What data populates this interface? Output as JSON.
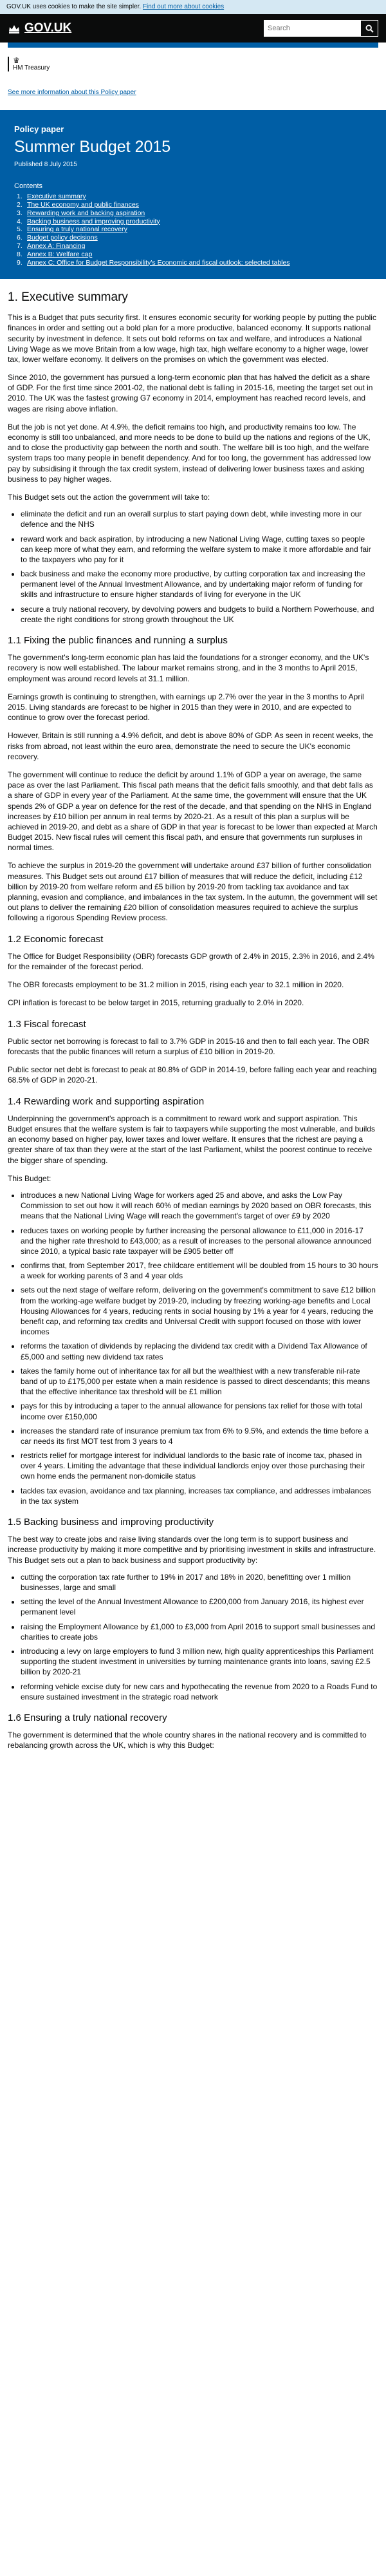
{
  "cookie": {
    "text": "GOV.UK uses cookies to make the site simpler.",
    "link": "Find out more about cookies"
  },
  "header": {
    "brand": "GOV.UK",
    "search_placeholder": "Search",
    "search_icon": "magnifying-glass-icon",
    "crown_icon": "crown-icon"
  },
  "org": {
    "name": "HM Treasury",
    "logo_icon": "royal-crest-icon"
  },
  "policy_link": "See more information about this Policy paper",
  "hero": {
    "type": "Policy paper",
    "title": "Summer Budget 2015",
    "published": "Published 8 July 2015",
    "contents_label": "Contents",
    "contents": [
      {
        "num": "1.",
        "label": "Executive summary"
      },
      {
        "num": "2.",
        "label": "The UK economy and public finances"
      },
      {
        "num": "3.",
        "label": "Rewarding work and backing aspiration"
      },
      {
        "num": "4.",
        "label": "Backing business and improving productivity"
      },
      {
        "num": "5.",
        "label": "Ensuring a truly national recovery"
      },
      {
        "num": "6.",
        "label": "Budget policy decisions"
      },
      {
        "num": "7.",
        "label": "Annex A: Financing"
      },
      {
        "num": "8.",
        "label": "Annex B: Welfare cap"
      },
      {
        "num": "9.",
        "label": "Annex C: Office for Budget Responsibility's Economic and fiscal outlook: selected tables"
      }
    ]
  },
  "content": {
    "h_exec": "1. Executive summary",
    "p_exec1": "This is a Budget that puts security first. It ensures economic security for working people by putting the public finances in order and setting out a bold plan for a more productive, balanced economy. It supports national security by investment in defence. It sets out bold reforms on tax and welfare, and introduces a National Living Wage as we move Britain from a low wage, high tax, high welfare economy to a higher wage, lower tax, lower welfare economy. It delivers on the promises on which the government was elected.",
    "p_exec2": "Since 2010, the government has pursued a long-term economic plan that has halved the deficit as a share of GDP. For the first time since 2001-02, the national debt is falling in 2015-16, meeting the target set out in 2010. The UK was the fastest growing G7 economy in 2014, employment has reached record levels, and wages are rising above inflation.",
    "p_exec3": "But the job is not yet done. At 4.9%, the deficit remains too high, and productivity remains too low. The economy is still too unbalanced, and more needs to be done to build up the nations and regions of the UK, and to close the productivity gap between the north and south. The welfare bill is too high, and the welfare system traps too many people in benefit dependency. And for too long, the government has addressed low pay by subsidising it through the tax credit system, instead of delivering lower business taxes and asking business to pay higher wages.",
    "p_exec4": "This Budget sets out the action the government will take to:",
    "exec_bullets": [
      "eliminate the deficit and run an overall surplus to start paying down debt, while investing more in our defence and the NHS",
      "reward work and back aspiration, by introducing a new National Living Wage, cutting taxes so people can keep more of what they earn, and reforming the welfare system to make it more affordable and fair to the taxpayers who pay for it",
      "back business and make the economy more productive, by cutting corporation tax and increasing the permanent level of the Annual Investment Allowance, and by undertaking major reform of funding for skills and infrastructure to ensure higher standards of living for everyone in the UK",
      "secure a truly national recovery, by devolving powers and budgets to build a Northern Powerhouse, and create the right conditions for strong growth throughout the UK"
    ],
    "h_fix": "1.1 Fixing the public finances and running a surplus",
    "p_fix1": "The government's long-term economic plan has laid the foundations for a stronger economy, and the UK's recovery is now well established. The labour market remains strong, and in the 3 months to April 2015, employment was around record levels at 31.1 million.",
    "p_fix2": "Earnings growth is continuing to strengthen, with earnings up 2.7% over the year in the 3 months to April 2015. Living standards are forecast to be higher in 2015 than they were in 2010, and are expected to continue to grow over the forecast period.",
    "p_fix3": "However, Britain is still running a 4.9% deficit, and debt is above 80% of GDP. As seen in recent weeks, the risks from abroad, not least within the euro area, demonstrate the need to secure the UK's economic recovery.",
    "p_fix4": "The government will continue to reduce the deficit by around 1.1% of GDP a year on average, the same pace as over the last Parliament. This fiscal path means that the deficit falls smoothly, and that debt falls as a share of GDP in every year of the Parliament. At the same time, the government will ensure that the UK spends 2% of GDP a year on defence for the rest of the decade, and that spending on the NHS in England increases by £10 billion per annum in real terms by 2020-21. As a result of this plan a surplus will be achieved in 2019-20, and debt as a share of GDP in that year is forecast to be lower than expected at March Budget 2015. New fiscal rules will cement this fiscal path, and ensure that governments run surpluses in normal times.",
    "p_fix5": "To achieve the surplus in 2019-20 the government will undertake around £37 billion of further consolidation measures. This Budget sets out around £17 billion of measures that will reduce the deficit, including £12 billion by 2019-20 from welfare reform and £5 billion by 2019-20 from tackling tax avoidance and tax planning, evasion and compliance, and imbalances in the tax system. In the autumn, the government will set out plans to deliver the remaining £20 billion of consolidation measures required to achieve the surplus following a rigorous Spending Review process.",
    "h_econ": "1.2 Economic forecast",
    "p_econ1": "The Office for Budget Responsibility (OBR) forecasts GDP growth of 2.4% in 2015, 2.3% in 2016, and 2.4% for the remainder of the forecast period.",
    "p_econ2": "The OBR forecasts employment to be 31.2 million in 2015, rising each year to 32.1 million in 2020.",
    "p_econ3": "CPI inflation is forecast to be below target in 2015, returning gradually to 2.0% in 2020.",
    "h_fiscal": "1.3 Fiscal forecast",
    "p_fiscal1": "Public sector net borrowing is forecast to fall to 3.7% GDP in 2015-16 and then to fall each year. The OBR forecasts that the public finances will return a surplus of £10 billion in 2019-20.",
    "p_fiscal2": "Public sector net debt is forecast to peak at 80.8% of GDP in 2014-19, before falling each year and reaching 68.5% of GDP in 2020-21.",
    "h_reward": "1.4 Rewarding work and supporting aspiration",
    "p_reward1": "Underpinning the government's approach is a commitment to reward work and support aspiration. This Budget ensures that the welfare system is fair to taxpayers while supporting the most vulnerable, and builds an economy based on higher pay, lower taxes and lower welfare. It ensures that the richest are paying a greater share of tax than they were at the start of the last Parliament, whilst the poorest continue to receive the bigger share of spending.",
    "p_reward2": "This Budget:",
    "reward_bullets": [
      "introduces a new National Living Wage for workers aged 25 and above, and asks the Low Pay Commission to set out how it will reach 60% of median earnings by 2020 based on OBR forecasts, this means that the National Living Wage will reach the government's target of over £9 by 2020",
      "reduces taxes on working people by further increasing the personal allowance to £11,000 in 2016-17 and the higher rate threshold to £43,000; as a result of increases to the personal allowance announced since 2010, a typical basic rate taxpayer will be £905 better off",
      "confirms that, from September 2017, free childcare entitlement will be doubled from 15 hours to 30 hours a week for working parents of 3 and 4 year olds",
      "sets out the next stage of welfare reform, delivering on the government's commitment to save £12 billion from the working-age welfare budget by 2019-20, including by freezing working-age benefits and Local Housing Allowances for 4 years, reducing rents in social housing by 1% a year for 4 years, reducing the benefit cap, and reforming tax credits and Universal Credit with support focused on those with lower incomes",
      "reforms the taxation of dividends by replacing the dividend tax credit with a Dividend Tax Allowance of £5,000 and setting new dividend tax rates",
      "takes the family home out of inheritance tax for all but the wealthiest with a new transferable nil-rate band of up to £175,000 per estate when a main residence is passed to direct descendants; this means that the effective inheritance tax threshold will be £1 million",
      "pays for this by introducing a taper to the annual allowance for pensions tax relief for those with total income over £150,000",
      "increases the standard rate of insurance premium tax from 6% to 9.5%, and extends the time before a car needs its first MOT test from 3 years to 4",
      "restricts relief for mortgage interest for individual landlords to the basic rate of income tax, phased in over 4 years. Limiting the advantage that these individual landlords enjoy over those purchasing their own home ends the permanent non-domicile status",
      "tackles tax evasion, avoidance and tax planning, increases tax compliance, and addresses imbalances in the tax system"
    ],
    "h_business": "1.5 Backing business and improving productivity",
    "p_business1": "The best way to create jobs and raise living standards over the long term is to support business and increase productivity by making it more competitive and by prioritising investment in skills and infrastructure. This Budget sets out a plan to back business and support productivity by:",
    "business_bullets": [
      "cutting the corporation tax rate further to 19% in 2017 and 18% in 2020, benefitting over 1 million businesses, large and small",
      "setting the level of the Annual Investment Allowance to £200,000 from January 2016, its highest ever permanent level",
      "raising the Employment Allowance by £1,000 to £3,000 from April 2016 to support small businesses and charities to create jobs",
      "introducing a levy on large employers to fund 3 million new, high quality apprenticeships this Parliament supporting the student investment in universities by turning maintenance grants into loans, saving £2.5 billion by 2020-21",
      "reforming vehicle excise duty for new cars and hypothecating the revenue from 2020 to a Roads Fund to ensure sustained investment in the strategic road network"
    ],
    "h_national": "1.6 Ensuring a truly national recovery",
    "p_national1": "The government is determined that the whole country shares in the national recovery and is committed to rebalancing growth across the UK, which is why this Budget:"
  }
}
